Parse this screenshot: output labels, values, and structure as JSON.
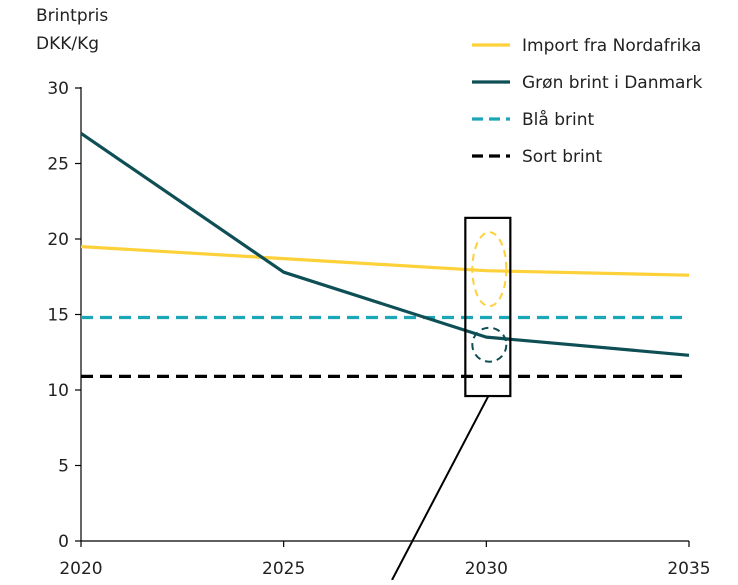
{
  "chart_data": {
    "type": "line",
    "title": "",
    "ylabel_lines": [
      "Brintpris",
      "DKK/Kg"
    ],
    "xlabel": "",
    "x": [
      2020,
      2025,
      2030,
      2035
    ],
    "xlim": [
      2020,
      2035
    ],
    "ylim": [
      0,
      30
    ],
    "yticks": [
      0,
      5,
      10,
      15,
      20,
      25,
      30
    ],
    "grid": false,
    "legend_position": "top-right",
    "series": [
      {
        "name": "Import fra Nordafrika",
        "color": "#fdd13a",
        "dash": "solid",
        "values": [
          19.5,
          18.7,
          17.9,
          17.6
        ]
      },
      {
        "name": "Grøn brint i Danmark",
        "color": "#0e4f56",
        "dash": "solid",
        "values": [
          27.0,
          17.8,
          13.5,
          12.3
        ]
      },
      {
        "name": "Blå brint",
        "color": "#1ca7b6",
        "dash": "dashed",
        "values": [
          14.8,
          14.8,
          14.8,
          14.8
        ]
      },
      {
        "name": "Sort brint",
        "color": "#000000",
        "dash": "dashed",
        "values": [
          10.9,
          10.9,
          10.9,
          10.9
        ]
      }
    ],
    "annotations": [
      {
        "type": "highlight-box",
        "x": 2030,
        "y_range": [
          9.6,
          21.4
        ]
      },
      {
        "type": "ellipse",
        "x": 2030,
        "y": 18.0,
        "color": "#fdd13a"
      },
      {
        "type": "ellipse",
        "x": 2030,
        "y": 13.0,
        "color": "#0e4f56"
      }
    ]
  }
}
